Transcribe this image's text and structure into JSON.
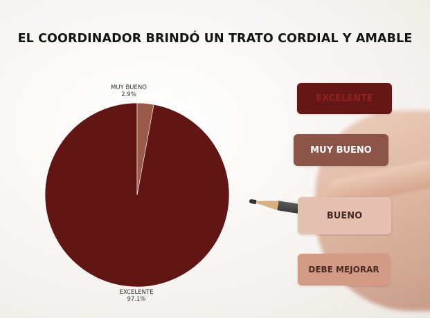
{
  "chart_data": {
    "type": "pie",
    "title": "EL COORDINADOR BRINDÓ UN TRATO CORDIAL Y AMABLE",
    "slices": [
      {
        "label": "EXCELENTE",
        "percent_label": "97.1%",
        "value": 97.1,
        "color": "#621614"
      },
      {
        "label": "MUY BUENO",
        "percent_label": "2.9%",
        "value": 2.9,
        "color": "#9a5a48"
      }
    ],
    "legend": [
      {
        "label": "EXCELENTE",
        "color": "#651715"
      },
      {
        "label": "MUY BUENO",
        "color": "#8c5547"
      },
      {
        "label": "BUENO",
        "color": "#e6c1b1"
      },
      {
        "label": "DEBE MEJORAR",
        "color": "#d39b86"
      }
    ],
    "legend_position": "right"
  }
}
